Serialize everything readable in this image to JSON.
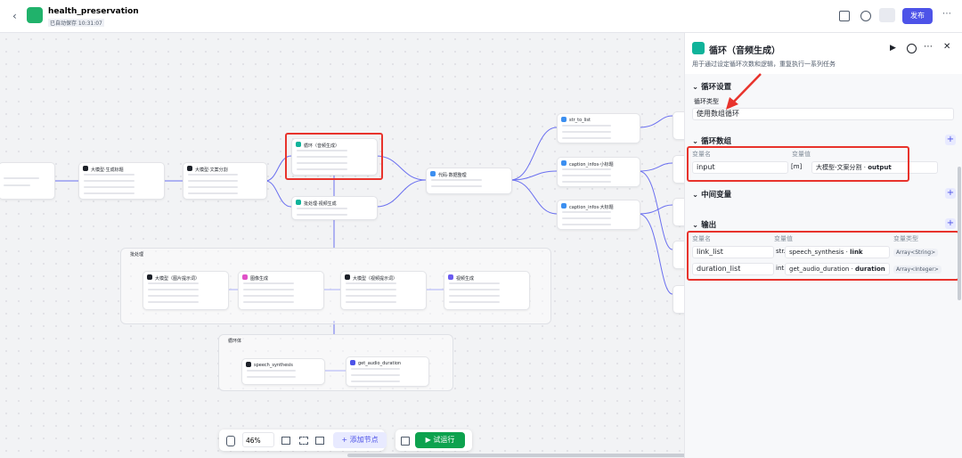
{
  "header": {
    "title": "health_preservation",
    "autosave": "已自动保存 10:31:07",
    "publish": "发布"
  },
  "canvas": {
    "nodes": [
      "大模型·生成标题",
      "大模型·文案分割",
      "循环（音频生成）",
      "批处理·视频生成",
      "代码·数据整理",
      "str_to_list",
      "caption_infos·小标题",
      "caption_infos·大标题",
      "大模型（图片提示词）",
      "图像生成",
      "大模型（视频提示词）",
      "视频生成",
      "speech_synthesis",
      "get_audio_duration"
    ],
    "groups": [
      "批处理",
      "循环体"
    ]
  },
  "toolbar": {
    "zoom": "46%",
    "add_node": "添加节点",
    "run": "试运行"
  },
  "panel": {
    "title": "循环（音频生成）",
    "description": "用于通过设定循环次数和逻辑，重复执行一系列任务",
    "loop_settings": {
      "heading": "循环设置",
      "type_label": "循环类型",
      "type_value": "使用数组循环"
    },
    "loop_array": {
      "heading": "循环数组",
      "col_name": "变量名",
      "col_value": "变量值",
      "row": {
        "name": "input",
        "type": "[m]",
        "source": "大模型-文案分割",
        "field": "output"
      }
    },
    "intermediate": {
      "heading": "中间变量"
    },
    "output": {
      "heading": "输出",
      "col_name": "变量名",
      "col_value": "变量值",
      "col_type": "变量类型",
      "rows": [
        {
          "name": "link_list",
          "type": "str.",
          "source": "speech_synthesis",
          "field": "link",
          "var_type": "Array<String>"
        },
        {
          "name": "duration_list",
          "type": "int.",
          "source": "get_audio_duration",
          "field": "duration",
          "var_type": "Array<Integer>"
        }
      ]
    }
  }
}
